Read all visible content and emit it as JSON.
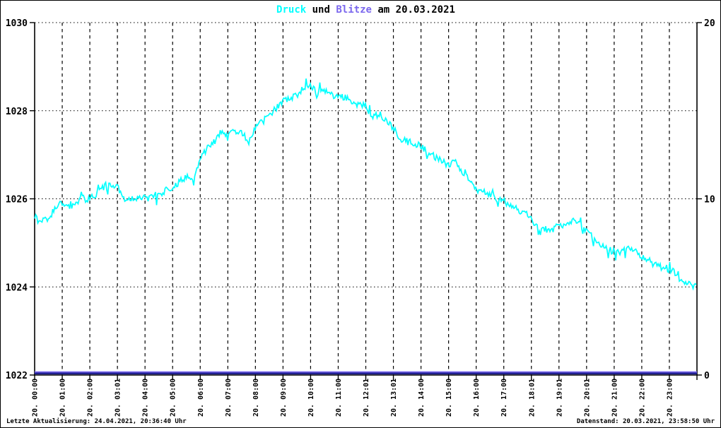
{
  "title": {
    "parts": [
      {
        "text": "Druck",
        "color": "#00ffff"
      },
      {
        "text": " und ",
        "color": "#000000"
      },
      {
        "text": "Blitze",
        "color": "#7b68ee"
      },
      {
        "text": " am 20.03.2021",
        "color": "#000000"
      }
    ],
    "full": "Druck und Blitze am 20.03.2021"
  },
  "footer": {
    "left": "Letzte Aktualisierung: 24.04.2021, 20:36:40 Uhr",
    "right": "Datenstand: 20.03.2021, 23:58:50 Uhr"
  },
  "colors": {
    "background": "#ffffff",
    "axis": "#000000",
    "grid": "#000000",
    "druck_line": "#00ffff",
    "blitze_line": "#7b68ee",
    "blitze_shadow": "#202090"
  },
  "chart_data": {
    "type": "line",
    "title": "Druck und Blitze am 20.03.2021",
    "x_axis": {
      "range_hours": [
        0,
        24
      ],
      "tick_hours": [
        0,
        1,
        2,
        3,
        4,
        5,
        6,
        7,
        8,
        9,
        10,
        11,
        12,
        13,
        14,
        15,
        16,
        17,
        18,
        19,
        20,
        21,
        22,
        23
      ],
      "tick_labels": [
        "20. 00:00",
        "20. 01:00",
        "20. 02:00",
        "20. 03:01",
        "20. 04:00",
        "20. 05:00",
        "20. 06:00",
        "20. 07:00",
        "20. 08:00",
        "20. 09:00",
        "20. 10:00",
        "20. 11:00",
        "20. 12:01",
        "20. 13:01",
        "20. 14:00",
        "20. 15:00",
        "20. 16:00",
        "20. 17:00",
        "20. 18:01",
        "20. 19:01",
        "20. 20:01",
        "20. 21:00",
        "20. 22:00",
        "20. 23:00"
      ],
      "grid_style": "dashed"
    },
    "left_axis": {
      "series": "Druck",
      "range": [
        1022,
        1030
      ],
      "ticks": [
        1030,
        1028,
        1026,
        1024,
        1022
      ],
      "grid_style": "dotted"
    },
    "right_axis": {
      "series": "Blitze",
      "range": [
        0,
        20
      ],
      "ticks": [
        20,
        10,
        0
      ]
    },
    "series": [
      {
        "name": "Druck",
        "axis": "left",
        "color": "#00ffff",
        "sample_interval_hours": 0.25,
        "noise_amplitude_hpa": 0.08,
        "values": [
          1025.55,
          1025.5,
          1025.55,
          1025.8,
          1025.9,
          1025.8,
          1025.95,
          1026.0,
          1026.0,
          1026.1,
          1026.25,
          1026.3,
          1026.3,
          1025.95,
          1026.0,
          1026.05,
          1026.0,
          1026.05,
          1026.1,
          1026.2,
          1026.25,
          1026.4,
          1026.5,
          1026.35,
          1026.9,
          1027.15,
          1027.35,
          1027.5,
          1027.4,
          1027.55,
          1027.5,
          1027.3,
          1027.6,
          1027.75,
          1027.9,
          1028.05,
          1028.2,
          1028.3,
          1028.35,
          1028.5,
          1028.6,
          1028.4,
          1028.45,
          1028.35,
          1028.3,
          1028.3,
          1028.2,
          1028.15,
          1028.1,
          1027.85,
          1027.95,
          1027.75,
          1027.6,
          1027.35,
          1027.3,
          1027.25,
          1027.2,
          1027.05,
          1026.95,
          1026.85,
          1026.75,
          1026.9,
          1026.6,
          1026.4,
          1026.2,
          1026.15,
          1026.1,
          1026.0,
          1025.95,
          1025.85,
          1025.75,
          1025.65,
          1025.55,
          1025.35,
          1025.3,
          1025.3,
          1025.35,
          1025.45,
          1025.5,
          1025.4,
          1025.25,
          1025.1,
          1024.95,
          1024.85,
          1024.8,
          1024.8,
          1024.85,
          1024.8,
          1024.7,
          1024.6,
          1024.5,
          1024.45,
          1024.4,
          1024.3,
          1024.15,
          1024.05,
          1024.0
        ]
      },
      {
        "name": "Blitze",
        "axis": "right",
        "color": "#7b68ee",
        "constant_value": 0
      }
    ]
  }
}
